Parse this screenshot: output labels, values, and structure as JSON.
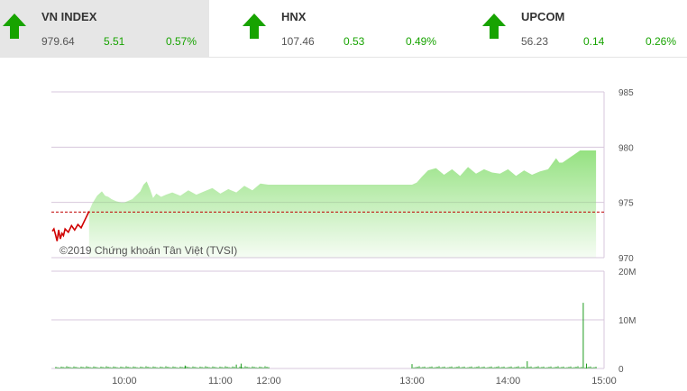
{
  "tickers": [
    {
      "name": "VN INDEX",
      "price": "979.64",
      "change": "5.51",
      "percent": "0.57%",
      "direction": "up",
      "active": true
    },
    {
      "name": "HNX",
      "price": "107.46",
      "change": "0.53",
      "percent": "0.49%",
      "direction": "up",
      "active": false
    },
    {
      "name": "UPCOM",
      "price": "56.23",
      "change": "0.14",
      "percent": "0.26%",
      "direction": "up",
      "active": false
    }
  ],
  "colors": {
    "up": "#17a300",
    "area_fill": "#8fe07a",
    "reference_line": "#c00000",
    "below_line": "#d00000",
    "volume": "#1e9c1e",
    "grid": "#d7c7dc"
  },
  "watermark": "©2019 Chứng khoán Tân Việt (TVSI)",
  "chart_data": {
    "type": "area",
    "title": "",
    "xlabel": "",
    "ylabel": "",
    "x_ticks": [
      "10:00",
      "11:00",
      "12:00",
      "13:00",
      "14:00",
      "15:00"
    ],
    "price_axis": {
      "ticks": [
        "985",
        "980",
        "975",
        "970"
      ],
      "ylim": [
        970,
        985
      ],
      "reference": 974.13
    },
    "volume_axis": {
      "ticks": [
        "20M",
        "10M",
        "0"
      ],
      "ylim": [
        0,
        20
      ]
    },
    "price_series": {
      "name": "",
      "time": [
        "09:15",
        "09:16",
        "09:17",
        "09:18",
        "09:19",
        "09:20",
        "09:21",
        "09:22",
        "09:23",
        "09:25",
        "09:27",
        "09:29",
        "09:31",
        "09:33",
        "09:36",
        "09:38",
        "09:40",
        "09:43",
        "09:46",
        "09:48",
        "09:50",
        "09:52",
        "09:55",
        "09:58",
        "10:00",
        "10:05",
        "10:10",
        "10:12",
        "10:14",
        "10:16",
        "10:18",
        "10:20",
        "10:23",
        "10:26",
        "10:30",
        "10:35",
        "10:40",
        "10:45",
        "10:50",
        "10:55",
        "11:00",
        "11:05",
        "11:10",
        "11:15",
        "11:20",
        "11:25",
        "11:30",
        "13:00",
        "13:03",
        "13:06",
        "13:10",
        "13:15",
        "13:20",
        "13:25",
        "13:30",
        "13:35",
        "13:40",
        "13:45",
        "13:50",
        "13:55",
        "14:00",
        "14:05",
        "14:10",
        "14:15",
        "14:20",
        "14:25",
        "14:30",
        "14:32",
        "14:34",
        "14:45",
        "14:50",
        "14:55"
      ],
      "values": [
        972.4,
        972.6,
        972.1,
        971.5,
        972.5,
        971.7,
        972.2,
        972.0,
        972.6,
        972.3,
        972.9,
        972.5,
        973.0,
        972.7,
        973.6,
        974.2,
        974.9,
        975.6,
        976.0,
        975.6,
        975.5,
        975.3,
        975.1,
        975.0,
        975.0,
        975.3,
        976.0,
        976.6,
        976.9,
        976.2,
        975.4,
        975.8,
        975.5,
        975.7,
        975.9,
        975.6,
        976.1,
        975.7,
        976.0,
        976.3,
        975.8,
        976.2,
        975.9,
        976.5,
        976.1,
        976.7,
        976.6,
        976.6,
        976.8,
        977.3,
        977.9,
        978.1,
        977.5,
        978.0,
        977.4,
        978.2,
        977.6,
        978.0,
        977.7,
        977.6,
        978.0,
        977.4,
        977.9,
        977.5,
        977.8,
        978.0,
        979.0,
        978.6,
        978.6,
        979.7,
        979.7,
        979.7
      ]
    },
    "volume_series": {
      "name": "",
      "unit": "M",
      "events": [
        {
          "time": "14:12",
          "value": 1.5
        },
        {
          "time": "14:47",
          "value": 13.5
        },
        {
          "time": "14:49",
          "value": 1.0
        },
        {
          "time": "13:00",
          "value": 0.9
        },
        {
          "time": "11:13",
          "value": 1.0
        },
        {
          "time": "11:10",
          "value": 0.8
        },
        {
          "time": "10:38",
          "value": 0.6
        }
      ],
      "baseline_value": 0.3
    }
  }
}
